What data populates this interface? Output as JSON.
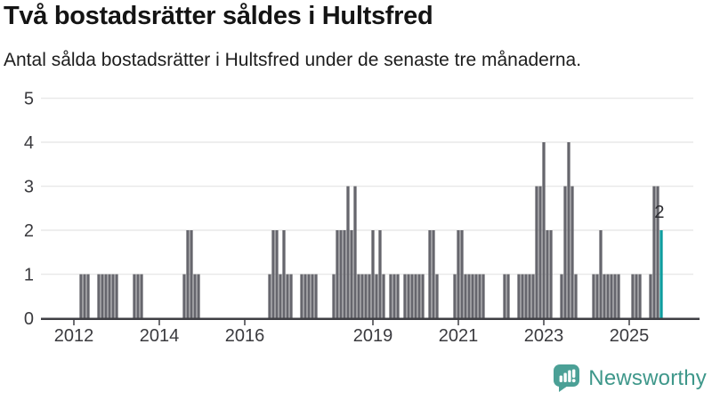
{
  "header": {
    "title": "Två bostadsrätter såldes i Hultsfred",
    "subtitle": "Antal sålda bostadsrätter i Hultsfred under de senaste tre månaderna."
  },
  "chart_data": {
    "type": "bar",
    "title": "Två bostadsrätter såldes i Hultsfred",
    "description": "Antal sålda bostadsrätter i Hultsfred per månad",
    "start_month": "2011-11",
    "end_month": "2025-10",
    "values": [
      0,
      0,
      0,
      0,
      1,
      1,
      1,
      0,
      0,
      1,
      1,
      1,
      1,
      1,
      1,
      0,
      0,
      0,
      0,
      1,
      1,
      1,
      0,
      0,
      0,
      0,
      0,
      0,
      0,
      0,
      0,
      0,
      0,
      1,
      2,
      2,
      1,
      1,
      0,
      0,
      0,
      0,
      0,
      0,
      0,
      0,
      0,
      0,
      0,
      0,
      0,
      0,
      0,
      0,
      0,
      0,
      0,
      1,
      2,
      2,
      1,
      2,
      1,
      1,
      0,
      0,
      1,
      1,
      1,
      1,
      1,
      0,
      0,
      0,
      0,
      1,
      2,
      2,
      2,
      3,
      2,
      3,
      1,
      1,
      1,
      1,
      2,
      1,
      2,
      1,
      0,
      1,
      1,
      1,
      0,
      1,
      1,
      1,
      1,
      1,
      1,
      0,
      2,
      2,
      1,
      0,
      0,
      0,
      0,
      1,
      2,
      2,
      1,
      1,
      1,
      1,
      1,
      1,
      0,
      0,
      0,
      0,
      0,
      1,
      1,
      0,
      0,
      1,
      1,
      1,
      1,
      1,
      3,
      3,
      4,
      2,
      2,
      0,
      0,
      1,
      3,
      4,
      3,
      1,
      0,
      0,
      0,
      0,
      1,
      1,
      2,
      1,
      1,
      1,
      1,
      1,
      0,
      0,
      0,
      1,
      1,
      1,
      0,
      0,
      1,
      3,
      3,
      2
    ],
    "highlight": {
      "month": "2025-10",
      "value": 2,
      "label": "2",
      "color": "#0f9d9f"
    },
    "bar_color": "#66666d",
    "grid": true,
    "ylim": [
      0,
      5
    ],
    "y_ticks": [
      "0",
      "1",
      "2",
      "3",
      "4",
      "5"
    ],
    "x_ticks": [
      {
        "label": "2012",
        "month_index": 2
      },
      {
        "label": "2014",
        "month_index": 26
      },
      {
        "label": "2016",
        "month_index": 50
      },
      {
        "label": "2019",
        "month_index": 86
      },
      {
        "label": "2021",
        "month_index": 110
      },
      {
        "label": "2023",
        "month_index": 134
      },
      {
        "label": "2025",
        "month_index": 158
      }
    ],
    "axis_color": "#3f3f44",
    "gridline_color": "#e9e9e9",
    "label_color": "#3a3a3e"
  },
  "branding": {
    "name": "Newsworthy",
    "color": "#3e978a",
    "bubble_color": "#4ba096"
  }
}
